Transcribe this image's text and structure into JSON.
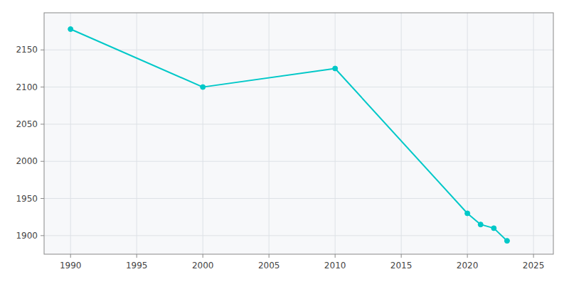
{
  "chart_data": {
    "type": "line",
    "x": [
      1990,
      2000,
      2010,
      2020,
      2021,
      2022,
      2023
    ],
    "values": [
      2178,
      2100,
      2125,
      1930,
      1915,
      1910,
      1893
    ],
    "color": "#00c8c8",
    "marker": "circle",
    "grid": true,
    "xlim": [
      1988,
      2026.5
    ],
    "ylim": [
      1875,
      2200
    ],
    "xticks": [
      1990,
      1995,
      2000,
      2005,
      2010,
      2015,
      2020,
      2025
    ],
    "yticks": [
      1900,
      1950,
      2000,
      2050,
      2100,
      2150
    ]
  }
}
